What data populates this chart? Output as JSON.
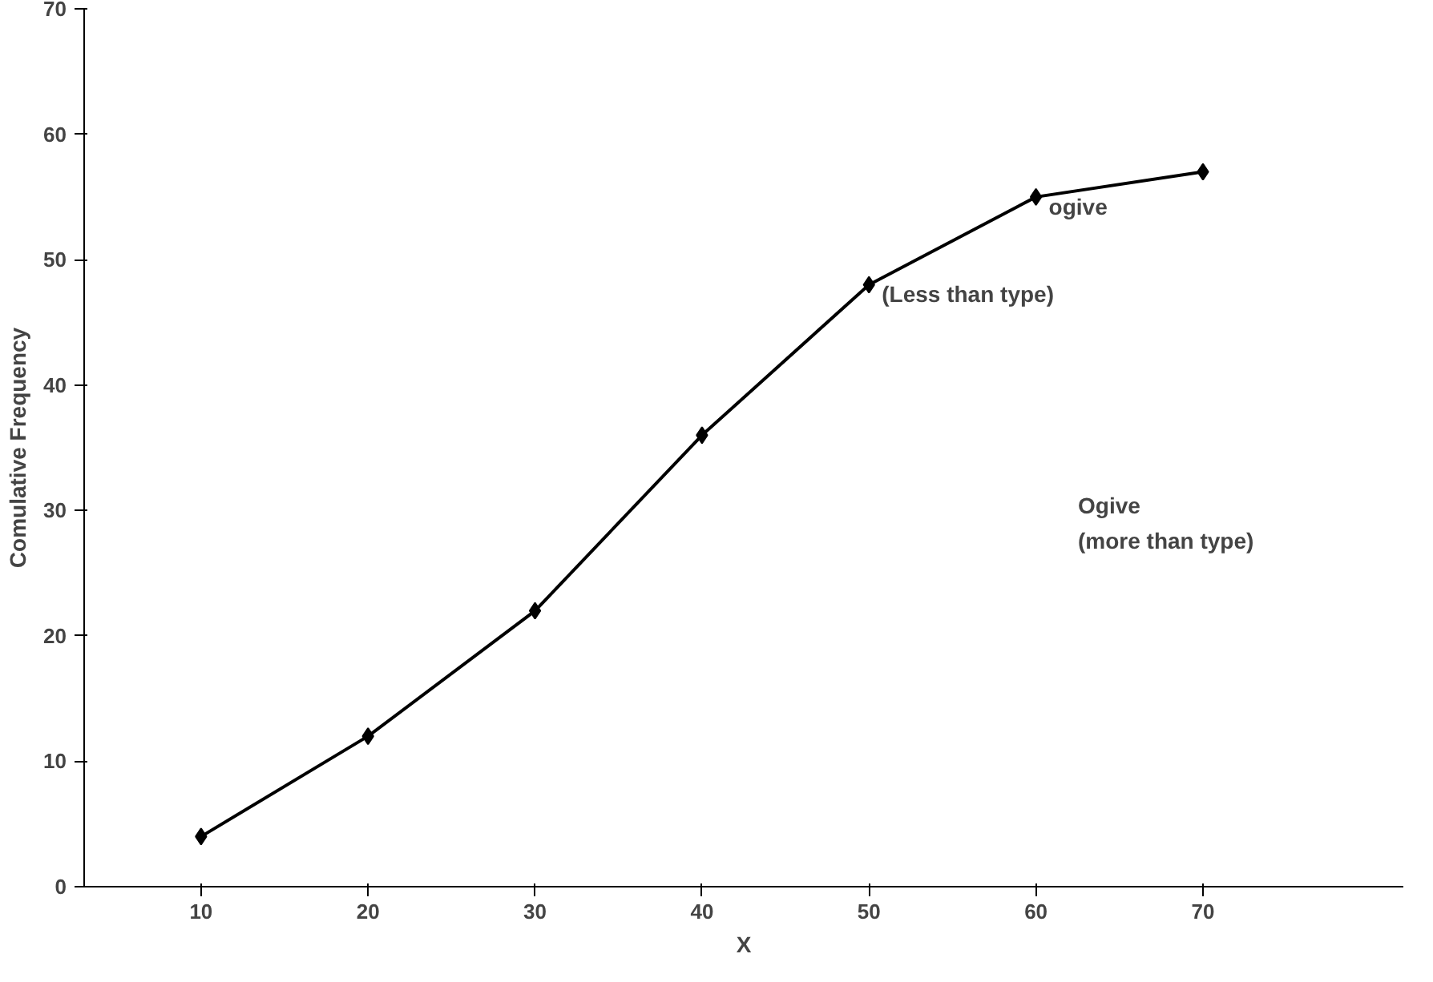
{
  "chart_data": {
    "type": "line",
    "xlabel": "X",
    "ylabel": "Comulative Frequency",
    "x": [
      10,
      20,
      30,
      40,
      50,
      60,
      70
    ],
    "series": [
      {
        "color": "#000000",
        "values": [
          4,
          12,
          22,
          36,
          48,
          55,
          57
        ]
      }
    ],
    "xlim": [
      3,
      82
    ],
    "xticks": [
      10,
      20,
      30,
      40,
      50,
      60,
      70
    ],
    "ylim": [
      0,
      70
    ],
    "yticks": [
      0,
      10,
      20,
      30,
      40,
      50,
      60,
      70
    ],
    "grid": false,
    "marker": "diamond",
    "line_style": "solid",
    "annotations": [
      {
        "text": "ogive",
        "x": 60,
        "y": 55
      },
      {
        "text": "(Less than type)",
        "x": 50,
        "y": 48
      },
      "Ogive",
      "(more than type)"
    ]
  }
}
